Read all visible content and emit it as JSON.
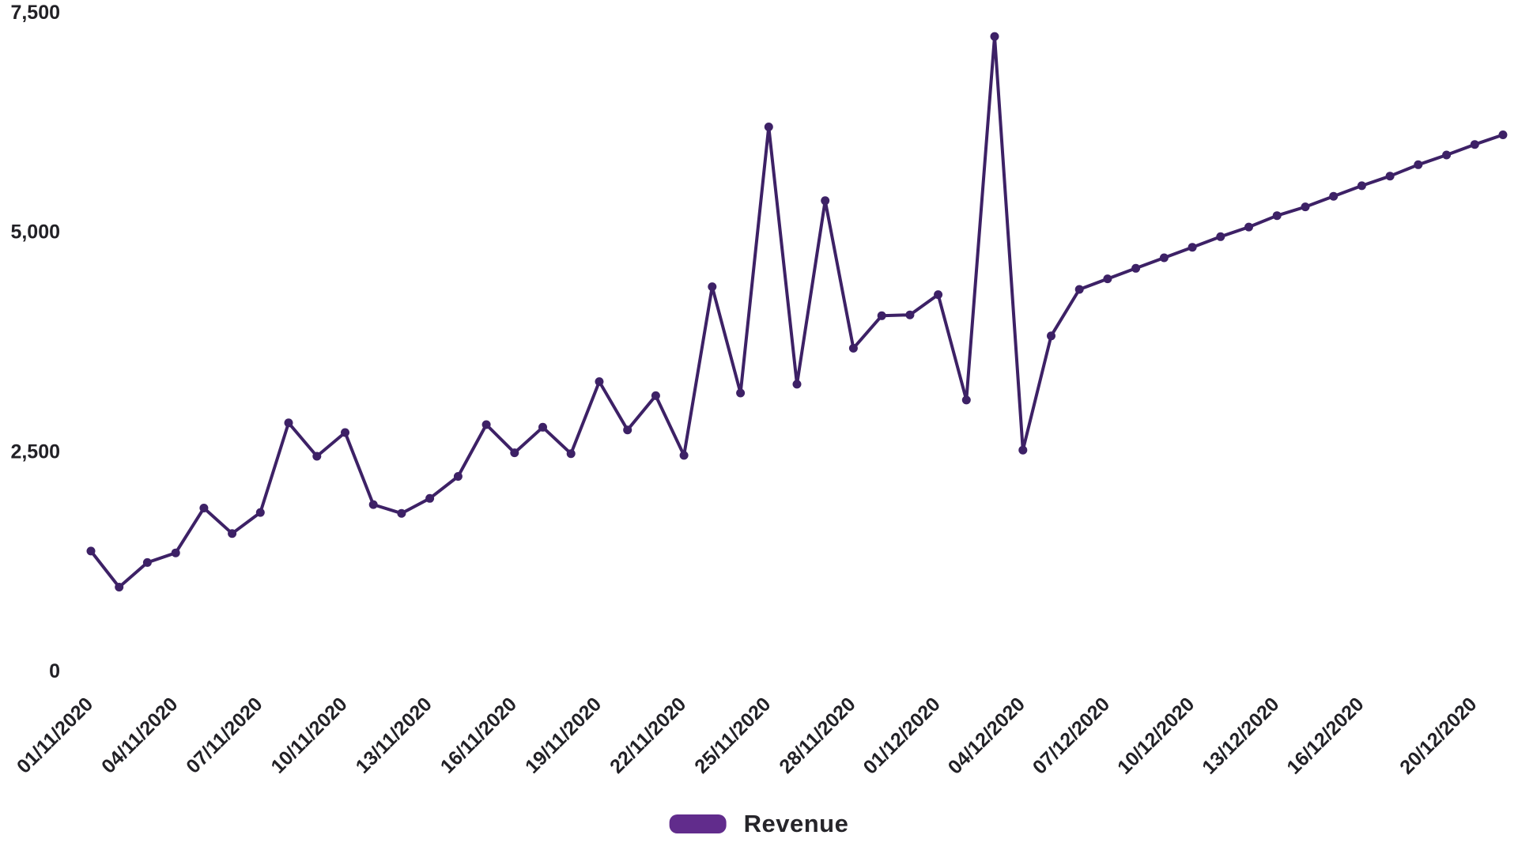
{
  "chart_data": {
    "type": "line",
    "title": "",
    "xlabel": "",
    "ylabel": "",
    "x": [
      "01/11/2020",
      "02/11/2020",
      "03/11/2020",
      "04/11/2020",
      "05/11/2020",
      "06/11/2020",
      "07/11/2020",
      "08/11/2020",
      "09/11/2020",
      "10/11/2020",
      "11/11/2020",
      "12/11/2020",
      "13/11/2020",
      "14/11/2020",
      "15/11/2020",
      "16/11/2020",
      "17/11/2020",
      "18/11/2020",
      "19/11/2020",
      "20/11/2020",
      "21/11/2020",
      "22/11/2020",
      "23/11/2020",
      "24/11/2020",
      "25/11/2020",
      "26/11/2020",
      "27/11/2020",
      "28/11/2020",
      "29/11/2020",
      "30/11/2020",
      "01/12/2020",
      "02/12/2020",
      "03/12/2020",
      "04/12/2020",
      "05/12/2020",
      "06/12/2020",
      "07/12/2020",
      "08/12/2020",
      "09/12/2020",
      "10/12/2020",
      "11/12/2020",
      "12/12/2020",
      "13/12/2020",
      "14/12/2020",
      "15/12/2020",
      "16/12/2020",
      "17/12/2020",
      "18/12/2020",
      "19/12/2020",
      "20/12/2020",
      "21/12/2020"
    ],
    "series": [
      {
        "name": "Revenue",
        "values": [
          1360,
          950,
          1230,
          1340,
          1850,
          1560,
          1800,
          2820,
          2440,
          2710,
          1890,
          1790,
          1960,
          2210,
          2800,
          2480,
          2770,
          2470,
          3290,
          2740,
          3130,
          2450,
          4370,
          3160,
          6190,
          3260,
          5350,
          3670,
          4040,
          4050,
          4280,
          3080,
          7220,
          2510,
          3810,
          4340,
          4460,
          4580,
          4700,
          4820,
          4940,
          5050,
          5180,
          5280,
          5400,
          5520,
          5630,
          5760,
          5870,
          5990,
          6100
        ]
      }
    ],
    "ylim": [
      0,
      7500
    ],
    "y_ticks": [
      {
        "value": 0,
        "label": "0"
      },
      {
        "value": 2500,
        "label": "2,500"
      },
      {
        "value": 5000,
        "label": "5,000"
      },
      {
        "value": 7500,
        "label": "7,500"
      }
    ],
    "x_tick_indices": [
      0,
      3,
      6,
      9,
      12,
      15,
      18,
      21,
      24,
      27,
      30,
      33,
      36,
      39,
      42,
      45,
      49
    ],
    "grid": false,
    "legend_position": "bottom",
    "legend_label": "Revenue",
    "marker_radius": 5.5,
    "line_width": 4,
    "colors": {
      "line": "#3d2166",
      "marker": "#3d2166",
      "legend_swatch": "#612c8c",
      "axis_text": "#222126",
      "legend_text": "#26252a",
      "background": "#ffffff"
    }
  }
}
